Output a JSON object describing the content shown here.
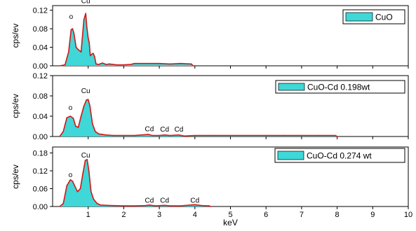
{
  "chart_data": [
    {
      "type": "area",
      "ylabel": "cps/ev",
      "ylim": [
        0,
        0.13
      ],
      "yticks": [
        "0.00",
        "0.04",
        "0.08",
        "0.12"
      ],
      "ytick_values": [
        0,
        0.04,
        0.08,
        0.12
      ],
      "legend": {
        "label": "CuO",
        "placement": "top-right",
        "swatch_color": "#3fd7d7"
      },
      "fill_color": "#3fd7d7",
      "line_color": "#d11616",
      "annotations": [
        {
          "text": "o",
          "x": 0.52,
          "y": 0.095
        },
        {
          "text": "Cu",
          "x": 0.93,
          "y": 0.129
        }
      ],
      "series": [
        {
          "x": [
            0.2,
            0.35,
            0.45,
            0.52,
            0.56,
            0.6,
            0.66,
            0.72,
            0.8,
            0.88,
            0.93,
            0.96,
            1.0,
            1.03,
            1.06,
            1.1,
            1.14,
            1.18,
            1.22,
            1.3,
            1.4,
            1.5,
            1.6,
            1.8,
            2.0,
            2.2,
            2.3,
            2.5,
            2.8,
            3.0,
            3.3,
            3.6,
            3.9,
            3.95
          ],
          "y": [
            0.0,
            0.002,
            0.03,
            0.078,
            0.08,
            0.07,
            0.04,
            0.035,
            0.03,
            0.1,
            0.113,
            0.085,
            0.06,
            0.05,
            0.022,
            0.025,
            0.027,
            0.02,
            0.004,
            0.003,
            0.006,
            0.003,
            0.004,
            0.002,
            0.002,
            0.003,
            0.005,
            0.005,
            0.005,
            0.005,
            0.004,
            0.005,
            0.004,
            0.0
          ]
        }
      ]
    },
    {
      "type": "area",
      "ylabel": "cps/ev",
      "ylim": [
        0,
        0.12
      ],
      "yticks": [
        "0.00",
        "0.04",
        "0.08",
        "0.12"
      ],
      "ytick_values": [
        0,
        0.04,
        0.08,
        0.12
      ],
      "legend": {
        "label": "CuO-Cd 0.198wt",
        "placement": "top-right",
        "swatch_color": "#3fd7d7"
      },
      "fill_color": "#3fd7d7",
      "line_color": "#d11616",
      "annotations": [
        {
          "text": "o",
          "x": 0.5,
          "y": 0.047
        },
        {
          "text": "Cu",
          "x": 0.93,
          "y": 0.08
        },
        {
          "text": "Cd",
          "x": 2.72,
          "y": 0.005
        },
        {
          "text": "Cd",
          "x": 3.15,
          "y": 0.004
        },
        {
          "text": "Cd",
          "x": 3.55,
          "y": 0.004
        }
      ],
      "series": [
        {
          "x": [
            0.2,
            0.3,
            0.4,
            0.5,
            0.58,
            0.65,
            0.72,
            0.8,
            0.88,
            0.95,
            1.0,
            1.05,
            1.12,
            1.2,
            1.3,
            1.4,
            1.5,
            1.7,
            2.0,
            2.3,
            2.7,
            2.8,
            3.0,
            3.15,
            3.3,
            3.55,
            3.7,
            4.0,
            4.5,
            5.0,
            5.5,
            6.0,
            6.5,
            7.0,
            7.5,
            7.95,
            8.0
          ],
          "y": [
            0.0,
            0.01,
            0.037,
            0.04,
            0.036,
            0.02,
            0.018,
            0.04,
            0.06,
            0.072,
            0.073,
            0.06,
            0.025,
            0.01,
            0.005,
            0.004,
            0.003,
            0.002,
            0.002,
            0.002,
            0.004,
            0.002,
            0.002,
            0.003,
            0.002,
            0.003,
            0.001,
            0.002,
            0.002,
            0.002,
            0.002,
            0.002,
            0.002,
            0.002,
            0.002,
            0.002,
            0.0
          ]
        }
      ]
    },
    {
      "type": "area",
      "ylabel": "cps/ev",
      "xlabel": "keV",
      "xlim": [
        0,
        10
      ],
      "xticks": [
        "1",
        "2",
        "3",
        "4",
        "5",
        "6",
        "7",
        "8",
        "9",
        "10"
      ],
      "xtick_values": [
        1,
        2,
        3,
        4,
        5,
        6,
        7,
        8,
        9,
        10
      ],
      "ylim": [
        0,
        0.2
      ],
      "yticks": [
        "0.00",
        "0.06",
        "0.12",
        "0.18"
      ],
      "ytick_values": [
        0,
        0.06,
        0.12,
        0.18
      ],
      "legend": {
        "label": "CuO-Cd 0.274 wt",
        "placement": "top-right",
        "swatch_color": "#3fd7d7"
      },
      "fill_color": "#3fd7d7",
      "line_color": "#d11616",
      "annotations": [
        {
          "text": "o",
          "x": 0.5,
          "y": 0.09
        },
        {
          "text": "Cu",
          "x": 0.93,
          "y": 0.155
        },
        {
          "text": "Cd",
          "x": 2.72,
          "y": 0.004
        },
        {
          "text": "Cd",
          "x": 3.15,
          "y": 0.004
        },
        {
          "text": "Cd",
          "x": 4.0,
          "y": 0.004
        }
      ],
      "series": [
        {
          "x": [
            0.2,
            0.3,
            0.4,
            0.5,
            0.56,
            0.62,
            0.7,
            0.78,
            0.85,
            0.92,
            0.97,
            1.02,
            1.08,
            1.15,
            1.25,
            1.35,
            1.5,
            1.7,
            2.0,
            2.3,
            2.6,
            2.72,
            2.9,
            3.15,
            3.3,
            3.6,
            4.0,
            4.2,
            4.4,
            4.45
          ],
          "y": [
            0.0,
            0.01,
            0.07,
            0.09,
            0.085,
            0.07,
            0.05,
            0.06,
            0.11,
            0.155,
            0.158,
            0.12,
            0.05,
            0.025,
            0.01,
            0.005,
            0.004,
            0.003,
            0.002,
            0.002,
            0.003,
            0.005,
            0.002,
            0.004,
            0.002,
            0.002,
            0.006,
            0.003,
            0.002,
            0.0
          ]
        }
      ]
    }
  ]
}
